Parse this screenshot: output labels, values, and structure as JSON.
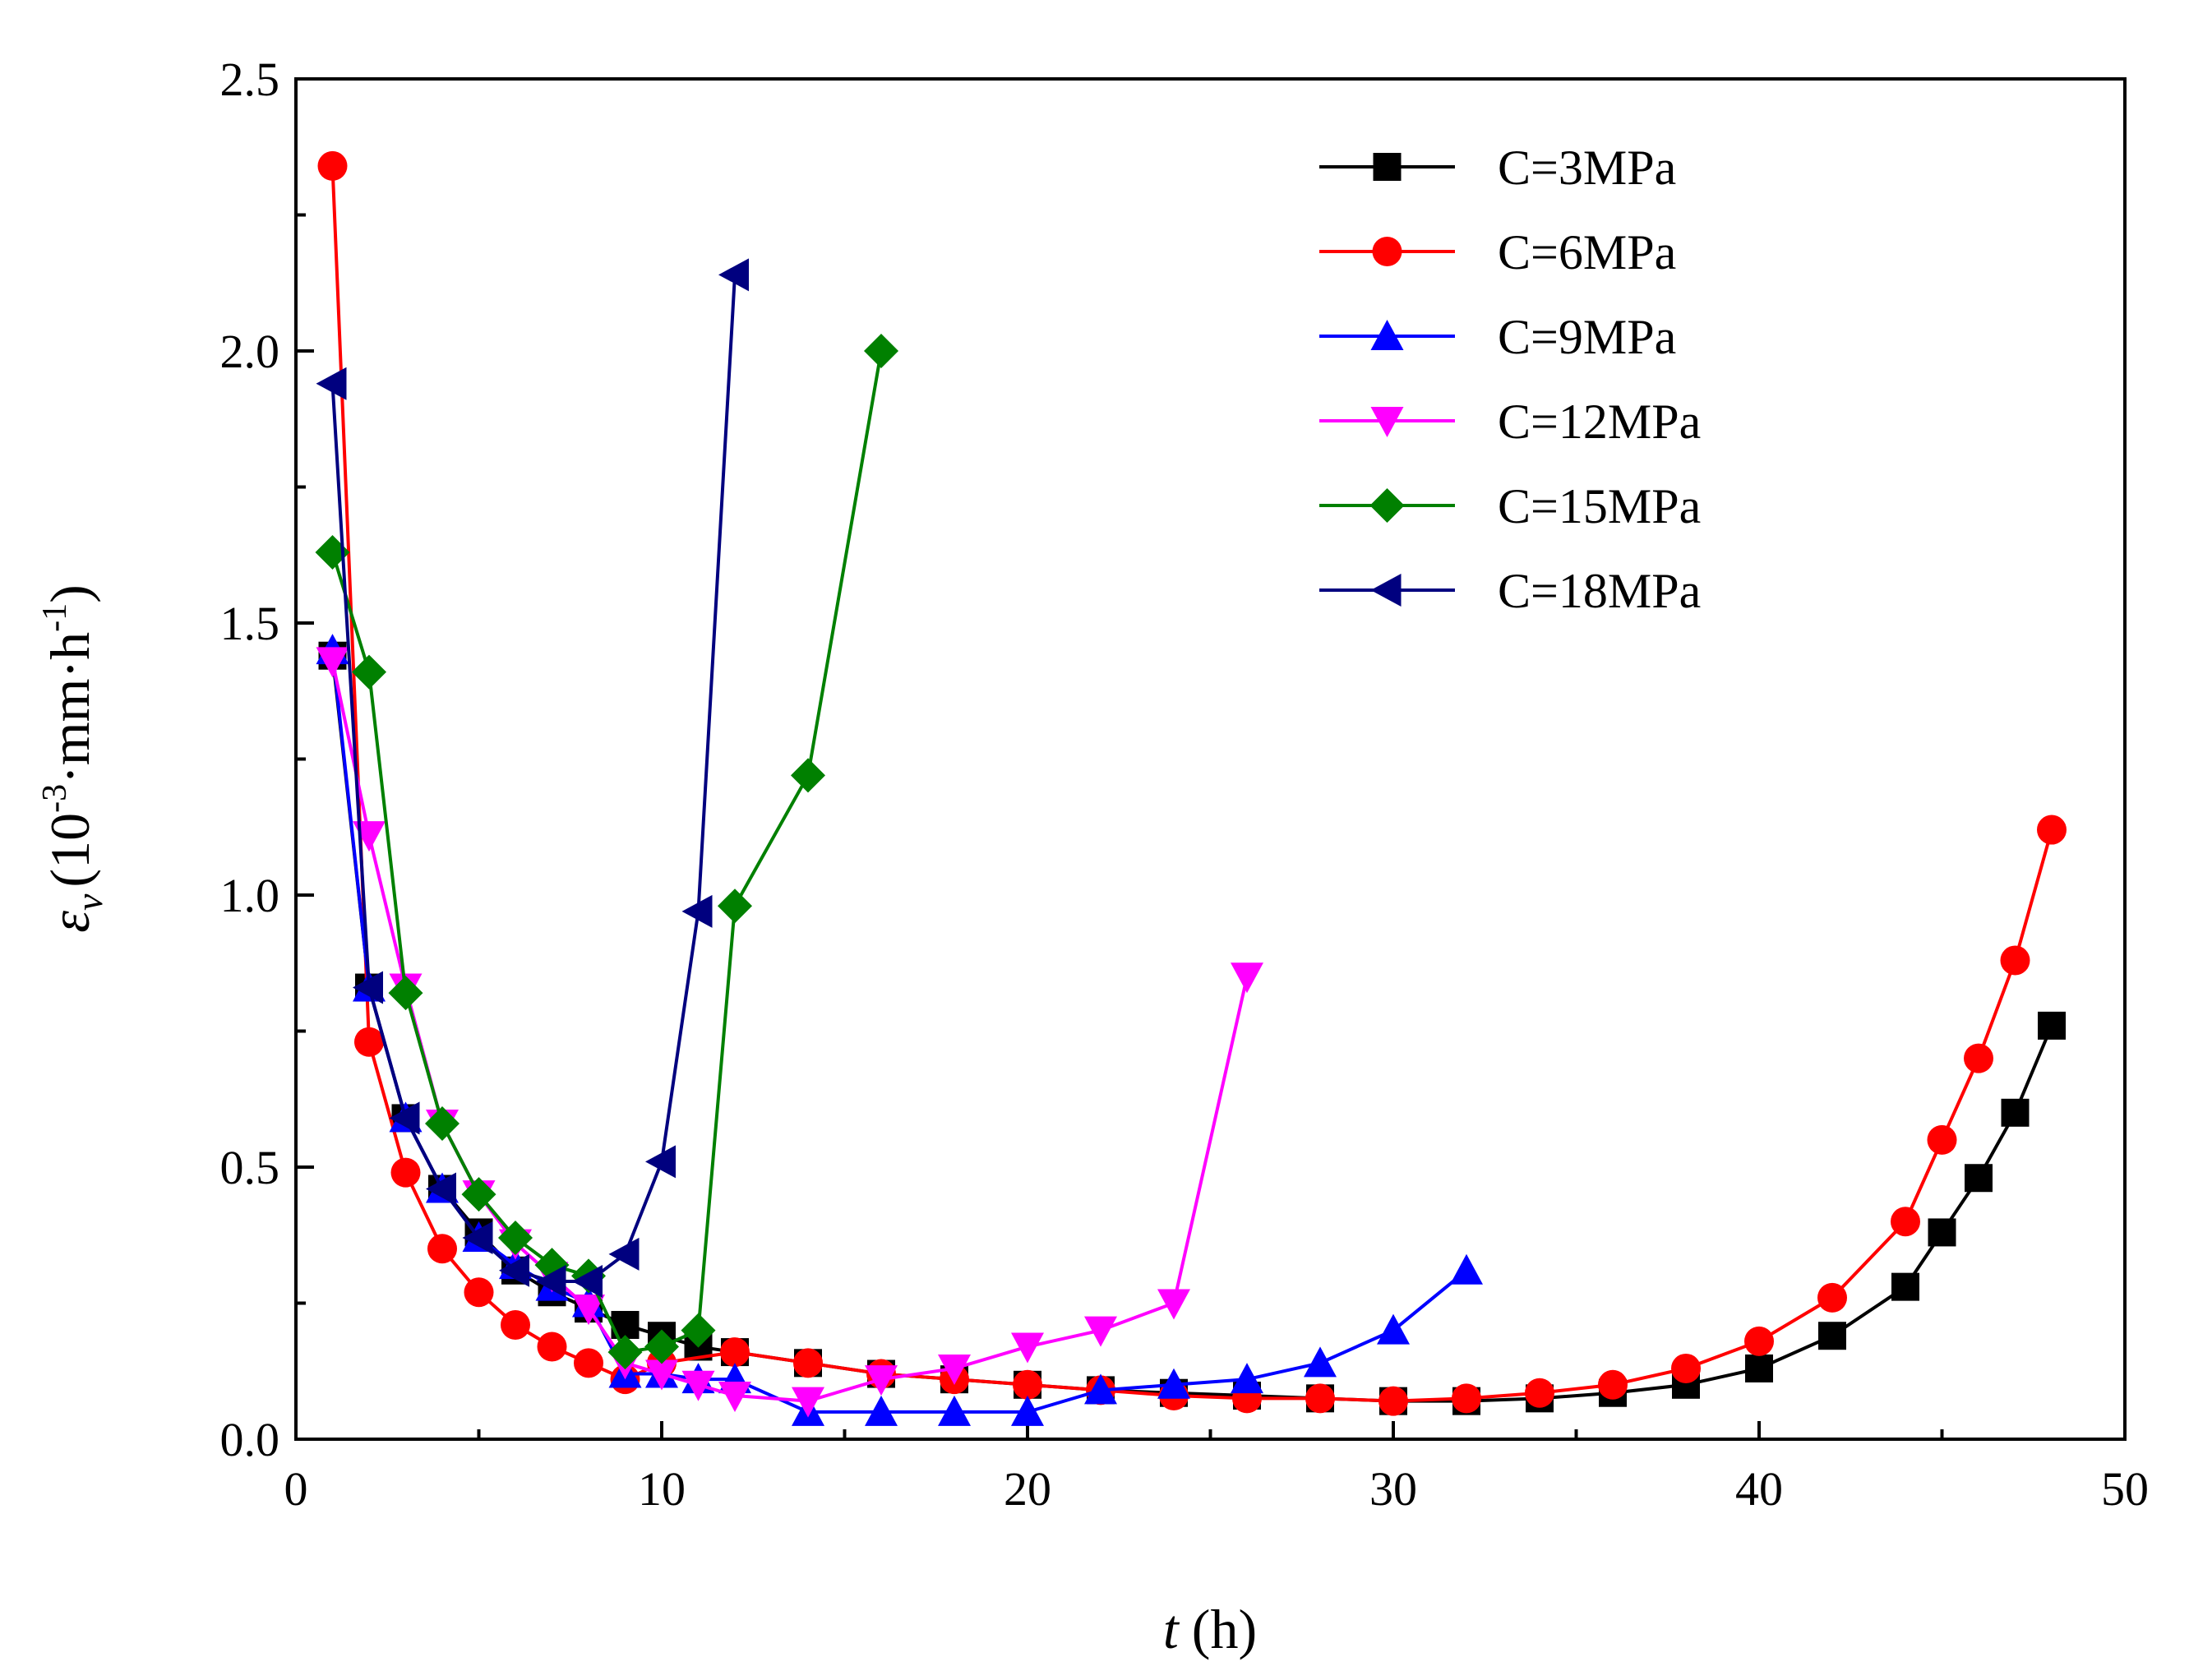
{
  "chart_data": {
    "type": "line",
    "title": "",
    "xlabel": {
      "var": "t",
      "unit": "(h)"
    },
    "ylabel": {
      "var": "ε",
      "sub": "v",
      "unit_base": "(10",
      "unit_exp1": "-3",
      "unit_mid": "·mm·h",
      "unit_exp2": "-1",
      "unit_close": ")"
    },
    "xlim": [
      0,
      50
    ],
    "ylim": [
      0,
      2.5
    ],
    "xticks": [
      "0",
      "10",
      "20",
      "30",
      "40",
      "50"
    ],
    "yticks": [
      "0.0",
      "0.5",
      "1.0",
      "1.5",
      "2.0",
      "2.5"
    ],
    "grid": false,
    "legend_position": "top-right",
    "series": [
      {
        "name": "C=3MPa",
        "color": "#000000",
        "marker": "square",
        "x": [
          1,
          2,
          3,
          4,
          5,
          6,
          7,
          8,
          9,
          10,
          11,
          12,
          14,
          16,
          18,
          20,
          22,
          24,
          26,
          28,
          30,
          32,
          34,
          36,
          38,
          40,
          42,
          44,
          45,
          46,
          47,
          48
        ],
        "y": [
          1.44,
          0.83,
          0.59,
          0.46,
          0.38,
          0.31,
          0.27,
          0.24,
          0.21,
          0.19,
          0.17,
          0.16,
          0.14,
          0.12,
          0.11,
          0.1,
          0.09,
          0.085,
          0.08,
          0.075,
          0.07,
          0.07,
          0.075,
          0.085,
          0.1,
          0.13,
          0.19,
          0.28,
          0.38,
          0.48,
          0.6,
          0.76
        ]
      },
      {
        "name": "C=6MPa",
        "color": "#ff0000",
        "marker": "circle",
        "x": [
          1,
          2,
          3,
          4,
          5,
          6,
          7,
          8,
          9,
          10,
          12,
          14,
          16,
          18,
          20,
          22,
          24,
          26,
          28,
          30,
          32,
          34,
          36,
          38,
          40,
          42,
          44,
          45,
          46,
          47,
          48
        ],
        "y": [
          2.34,
          0.73,
          0.49,
          0.35,
          0.27,
          0.21,
          0.17,
          0.14,
          0.11,
          0.14,
          0.16,
          0.14,
          0.12,
          0.11,
          0.1,
          0.09,
          0.08,
          0.075,
          0.075,
          0.07,
          0.075,
          0.085,
          0.1,
          0.13,
          0.18,
          0.26,
          0.4,
          0.55,
          0.7,
          0.88,
          1.12
        ]
      },
      {
        "name": "C=9MPa",
        "color": "#0000ff",
        "marker": "triangle-up",
        "x": [
          1,
          2,
          3,
          4,
          5,
          6,
          7,
          8,
          9,
          10,
          11,
          12,
          14,
          16,
          18,
          20,
          22,
          24,
          26,
          28,
          30,
          32
        ],
        "y": [
          1.45,
          0.83,
          0.59,
          0.46,
          0.37,
          0.32,
          0.28,
          0.25,
          0.12,
          0.12,
          0.11,
          0.11,
          0.05,
          0.05,
          0.05,
          0.05,
          0.09,
          0.1,
          0.11,
          0.14,
          0.2,
          0.31
        ]
      },
      {
        "name": "C=12MPa",
        "color": "#ff00ff",
        "marker": "triangle-down",
        "x": [
          1,
          2,
          3,
          4,
          5,
          6,
          7,
          8,
          9,
          10,
          11,
          12,
          14,
          16,
          18,
          20,
          22,
          24,
          26
        ],
        "y": [
          1.43,
          1.11,
          0.83,
          0.58,
          0.45,
          0.36,
          0.3,
          0.24,
          0.14,
          0.12,
          0.1,
          0.08,
          0.07,
          0.11,
          0.13,
          0.17,
          0.2,
          0.25,
          0.85
        ]
      },
      {
        "name": "C=15MPa",
        "color": "#008000",
        "marker": "diamond",
        "x": [
          1,
          2,
          3,
          4,
          5,
          6,
          7,
          8,
          9,
          10,
          11,
          12,
          14,
          16
        ],
        "y": [
          1.63,
          1.41,
          0.82,
          0.58,
          0.45,
          0.37,
          0.32,
          0.3,
          0.16,
          0.17,
          0.2,
          0.98,
          1.22,
          2.0
        ]
      },
      {
        "name": "C=18MPa",
        "color": "#00007f",
        "marker": "triangle-left",
        "x": [
          1,
          2,
          3,
          4,
          5,
          6,
          7,
          8,
          9,
          10,
          11,
          12
        ],
        "y": [
          1.94,
          0.83,
          0.59,
          0.46,
          0.37,
          0.31,
          0.29,
          0.29,
          0.34,
          0.51,
          0.97,
          2.14
        ]
      }
    ]
  }
}
